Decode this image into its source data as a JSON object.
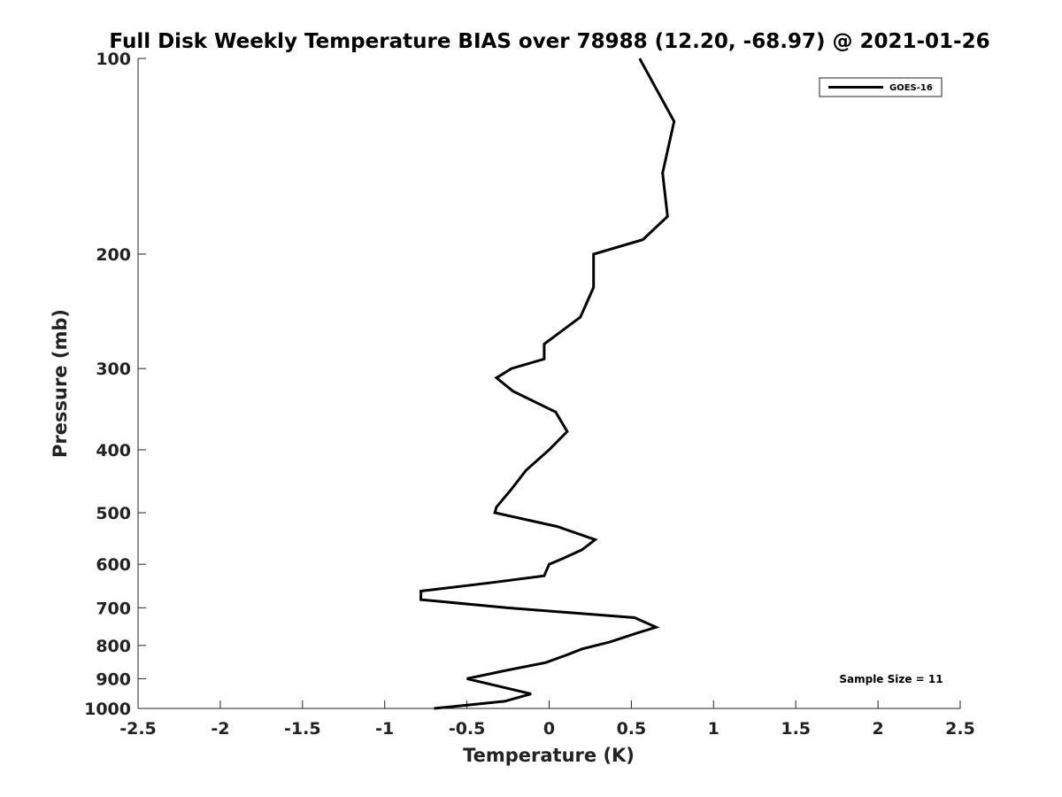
{
  "chart_data": {
    "type": "line",
    "title": "Full Disk Weekly Temperature BIAS over 78988 (12.20, -68.97) @ 2021-01-26",
    "xlabel": "Temperature (K)",
    "ylabel": "Pressure (mb)",
    "xlim": [
      -2.5,
      2.5
    ],
    "ylim": [
      1000,
      100
    ],
    "yscale": "log",
    "x_ticks": [
      "-2.5",
      "-2",
      "-1.5",
      "-1",
      "-0.5",
      "0",
      "0.5",
      "1",
      "1.5",
      "2",
      "2.5"
    ],
    "y_ticks": [
      "100",
      "200",
      "300",
      "400",
      "500",
      "600",
      "700",
      "800",
      "900",
      "1000"
    ],
    "grid": false,
    "legend": {
      "position": "top-right",
      "entries": [
        "GOES-16"
      ]
    },
    "annotation": "Sample Size = 11",
    "series": [
      {
        "name": "GOES-16",
        "color": "#000000",
        "points": [
          {
            "x": 0.55,
            "y": 100
          },
          {
            "x": 0.76,
            "y": 125
          },
          {
            "x": 0.69,
            "y": 150
          },
          {
            "x": 0.72,
            "y": 175
          },
          {
            "x": 0.57,
            "y": 190
          },
          {
            "x": 0.27,
            "y": 200
          },
          {
            "x": 0.27,
            "y": 225
          },
          {
            "x": 0.19,
            "y": 250
          },
          {
            "x": -0.03,
            "y": 275
          },
          {
            "x": -0.03,
            "y": 290
          },
          {
            "x": -0.23,
            "y": 300
          },
          {
            "x": -0.32,
            "y": 310
          },
          {
            "x": -0.22,
            "y": 325
          },
          {
            "x": 0.04,
            "y": 350
          },
          {
            "x": 0.11,
            "y": 375
          },
          {
            "x": 0.0,
            "y": 400
          },
          {
            "x": -0.14,
            "y": 430
          },
          {
            "x": -0.23,
            "y": 460
          },
          {
            "x": -0.32,
            "y": 490
          },
          {
            "x": -0.33,
            "y": 500
          },
          {
            "x": 0.05,
            "y": 525
          },
          {
            "x": 0.28,
            "y": 550
          },
          {
            "x": 0.2,
            "y": 570
          },
          {
            "x": 0.07,
            "y": 590
          },
          {
            "x": 0.0,
            "y": 600
          },
          {
            "x": -0.03,
            "y": 625
          },
          {
            "x": -0.34,
            "y": 640
          },
          {
            "x": -0.78,
            "y": 660
          },
          {
            "x": -0.78,
            "y": 680
          },
          {
            "x": -0.26,
            "y": 700
          },
          {
            "x": 0.52,
            "y": 725
          },
          {
            "x": 0.65,
            "y": 750
          },
          {
            "x": 0.54,
            "y": 765
          },
          {
            "x": 0.37,
            "y": 790
          },
          {
            "x": 0.2,
            "y": 810
          },
          {
            "x": 0.12,
            "y": 825
          },
          {
            "x": -0.02,
            "y": 850
          },
          {
            "x": -0.27,
            "y": 875
          },
          {
            "x": -0.5,
            "y": 900
          },
          {
            "x": -0.11,
            "y": 950
          },
          {
            "x": -0.27,
            "y": 975
          },
          {
            "x": -0.7,
            "y": 1000
          }
        ]
      }
    ]
  }
}
